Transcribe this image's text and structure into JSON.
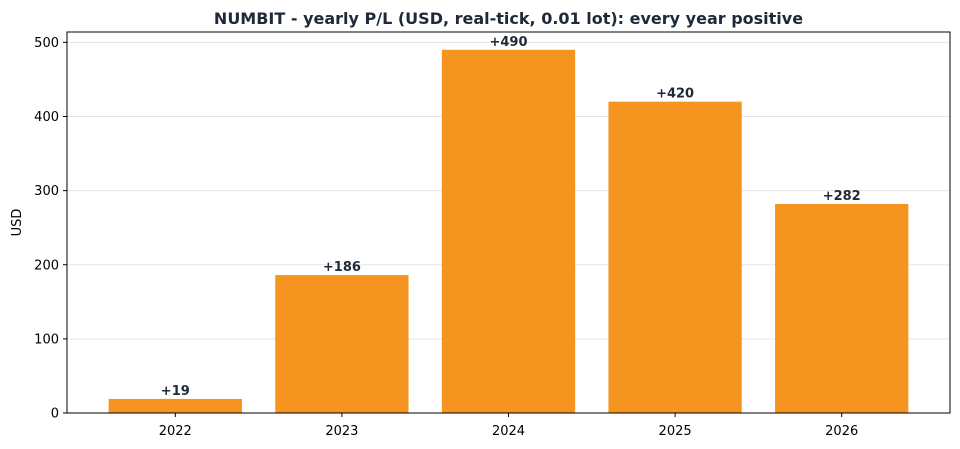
{
  "chart_data": {
    "type": "bar",
    "title": "NUMBIT - yearly P/L (USD, real-tick, 0.01 lot): every year positive",
    "xlabel": "",
    "ylabel": "USD",
    "categories": [
      "2022",
      "2023",
      "2024",
      "2025",
      "2026"
    ],
    "values": [
      19,
      186,
      490,
      420,
      282
    ],
    "data_labels": [
      "+19",
      "+186",
      "+490",
      "+420",
      "+282"
    ],
    "ylim": [
      0,
      514
    ],
    "yticks": [
      0,
      100,
      200,
      300,
      400,
      500
    ],
    "grid": true,
    "bar_color": "#f5951f"
  }
}
